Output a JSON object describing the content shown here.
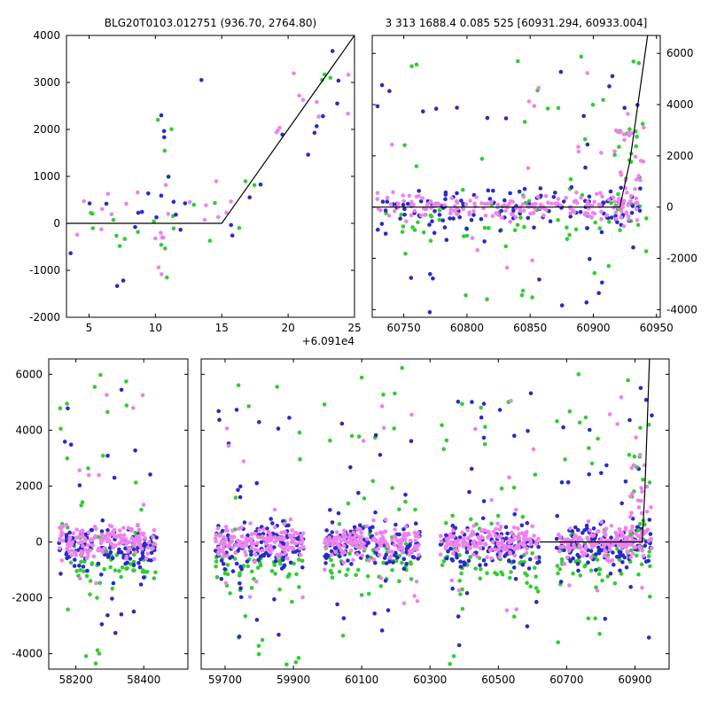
{
  "figure": {
    "background": "#ffffff",
    "text_color": "#000000",
    "colors": {
      "green": "#33cc33",
      "blue": "#2a2ac8",
      "violet": "#ee82ee",
      "line": "#000000"
    }
  },
  "chart_data": [
    {
      "id": "top_left",
      "type": "scatter",
      "title": "BLG20T0103.012751 (936.70, 2764.80)",
      "x_offset_label": "+6.091e4",
      "ylim": [
        -2000,
        4000
      ],
      "yticks": [
        -2000,
        -1000,
        0,
        1000,
        2000,
        3000,
        4000
      ],
      "ytick_side": "left",
      "panels": [
        {
          "xlim": [
            3.3,
            25
          ],
          "xticks": [
            5,
            10,
            15,
            20,
            25
          ]
        }
      ],
      "line": [
        [
          3.3,
          0
        ],
        [
          15,
          0
        ],
        [
          25,
          4000
        ]
      ],
      "clusters": [
        {
          "color": "green",
          "n": 14,
          "x": [
            3.4,
            15
          ],
          "dist": "normal",
          "mean": 130,
          "sd": 350
        },
        {
          "color": "green",
          "n": 6,
          "x": [
            9.8,
            11.4
          ],
          "dist": "uniform",
          "range": [
            -1300,
            3750
          ]
        },
        {
          "color": "green",
          "n": 6,
          "x": [
            15,
            25
          ],
          "dist": "line",
          "sd": 700
        },
        {
          "color": "blue",
          "n": 12,
          "x": [
            3.6,
            15
          ],
          "dist": "normal",
          "mean": 80,
          "sd": 420
        },
        {
          "color": "blue",
          "n": 2,
          "x": [
            6.8,
            7.6
          ],
          "dist": "uniform",
          "range": [
            -1400,
            -1100
          ]
        },
        {
          "color": "blue",
          "n": 5,
          "x": [
            9.8,
            11.3
          ],
          "dist": "uniform",
          "range": [
            -900,
            3000
          ]
        },
        {
          "color": "blue",
          "n": 1,
          "x": [
            13.3,
            13.7
          ],
          "dist": "uniform",
          "range": [
            2900,
            3100
          ]
        },
        {
          "color": "blue",
          "n": 12,
          "x": [
            15.2,
            24.6
          ],
          "dist": "line",
          "sd": 600
        },
        {
          "color": "violet",
          "n": 16,
          "x": [
            3.4,
            15
          ],
          "dist": "normal",
          "mean": 240,
          "sd": 330
        },
        {
          "color": "violet",
          "n": 5,
          "x": [
            9.9,
            11.2
          ],
          "dist": "uniform",
          "range": [
            -1300,
            2300
          ]
        },
        {
          "color": "violet",
          "n": 13,
          "x": [
            15,
            25
          ],
          "dist": "line",
          "sd": 550
        }
      ]
    },
    {
      "id": "top_right",
      "type": "scatter",
      "title": "3 313 1688.4 0.085 525 [60931.294, 60933.004]",
      "x_offset_label": "",
      "ylim": [
        -4300,
        6700
      ],
      "yticks": [
        -4000,
        -2000,
        0,
        2000,
        4000,
        6000
      ],
      "ytick_side": "right",
      "panels": [
        {
          "xlim": [
            60725,
            60953
          ],
          "xticks": [
            60750,
            60800,
            60850,
            60900,
            60950
          ]
        }
      ],
      "line": [
        [
          60725,
          0
        ],
        [
          60921,
          0
        ],
        [
          60929,
          1800
        ],
        [
          60937,
          4600
        ],
        [
          60945,
          7400
        ]
      ],
      "clusters": [
        {
          "color": "green",
          "n": 50,
          "x": [
            60730,
            60940
          ],
          "dist": "normal",
          "mean": -450,
          "sd": 550
        },
        {
          "color": "green",
          "n": 38,
          "x": [
            60730,
            60945
          ],
          "dist": "uniform",
          "range": [
            -3600,
            6300
          ]
        },
        {
          "color": "green",
          "n": 16,
          "x": [
            60916,
            60942
          ],
          "dist": "uniform",
          "range": [
            0,
            3300
          ]
        },
        {
          "color": "blue",
          "n": 110,
          "x": [
            60728,
            60938
          ],
          "dist": "normal",
          "mean": -80,
          "sd": 420
        },
        {
          "color": "blue",
          "n": 38,
          "x": [
            60728,
            60944
          ],
          "dist": "uniform",
          "range": [
            -4300,
            5800
          ]
        },
        {
          "color": "violet",
          "n": 170,
          "x": [
            60728,
            60936
          ],
          "dist": "normal",
          "mean": 0,
          "sd": 280
        },
        {
          "color": "violet",
          "n": 18,
          "x": [
            60730,
            60930
          ],
          "dist": "uniform",
          "range": [
            -2700,
            5300
          ]
        },
        {
          "color": "violet",
          "n": 24,
          "x": [
            60914,
            60940
          ],
          "dist": "uniform",
          "range": [
            0,
            3200
          ]
        }
      ]
    },
    {
      "id": "bottom",
      "type": "scatter",
      "title": "",
      "x_offset_label": "",
      "ylim": [
        -4550,
        6550
      ],
      "yticks": [
        -4000,
        -2000,
        0,
        2000,
        4000,
        6000
      ],
      "ytick_side": "left",
      "panels": [
        {
          "xlim": [
            58120,
            58530
          ],
          "xticks": [
            58200,
            58400
          ]
        },
        {
          "xlim": [
            59630,
            61000
          ],
          "xticks": [
            59700,
            59900,
            60100,
            60300,
            60500,
            60700,
            60900
          ]
        }
      ],
      "line": [
        [
          60620,
          0
        ],
        [
          60921,
          0
        ],
        [
          60929,
          1800
        ],
        [
          60937,
          4600
        ],
        [
          60945,
          7400
        ]
      ],
      "clusters": [
        {
          "color": "green",
          "n": 55,
          "x": [
            58150,
            58440
          ],
          "dist": "normal",
          "mean": -650,
          "sd": 500
        },
        {
          "color": "green",
          "n": 55,
          "x": [
            59670,
            59930
          ],
          "dist": "normal",
          "mean": -650,
          "sd": 500
        },
        {
          "color": "green",
          "n": 55,
          "x": [
            59990,
            60270
          ],
          "dist": "normal",
          "mean": -650,
          "sd": 500
        },
        {
          "color": "green",
          "n": 55,
          "x": [
            60330,
            60620
          ],
          "dist": "normal",
          "mean": -650,
          "sd": 500
        },
        {
          "color": "green",
          "n": 55,
          "x": [
            60670,
            60950
          ],
          "dist": "normal",
          "mean": -650,
          "sd": 500
        },
        {
          "color": "green",
          "n": 26,
          "x": [
            58150,
            58440
          ],
          "dist": "uniform",
          "range": [
            -4450,
            6400
          ]
        },
        {
          "color": "green",
          "n": 26,
          "x": [
            59670,
            59930
          ],
          "dist": "uniform",
          "range": [
            -4450,
            6400
          ]
        },
        {
          "color": "green",
          "n": 26,
          "x": [
            59990,
            60270
          ],
          "dist": "uniform",
          "range": [
            -4450,
            6400
          ]
        },
        {
          "color": "green",
          "n": 26,
          "x": [
            60330,
            60620
          ],
          "dist": "uniform",
          "range": [
            -4450,
            6400
          ]
        },
        {
          "color": "green",
          "n": 26,
          "x": [
            60670,
            60950
          ],
          "dist": "uniform",
          "range": [
            -4450,
            6400
          ]
        },
        {
          "color": "blue",
          "n": 115,
          "x": [
            58150,
            58440
          ],
          "dist": "normal",
          "mean": -120,
          "sd": 430
        },
        {
          "color": "blue",
          "n": 115,
          "x": [
            59670,
            59930
          ],
          "dist": "normal",
          "mean": -120,
          "sd": 430
        },
        {
          "color": "blue",
          "n": 115,
          "x": [
            59990,
            60270
          ],
          "dist": "normal",
          "mean": -120,
          "sd": 430
        },
        {
          "color": "blue",
          "n": 115,
          "x": [
            60330,
            60620
          ],
          "dist": "normal",
          "mean": -120,
          "sd": 430
        },
        {
          "color": "blue",
          "n": 115,
          "x": [
            60670,
            60950
          ],
          "dist": "normal",
          "mean": -120,
          "sd": 430
        },
        {
          "color": "blue",
          "n": 20,
          "x": [
            58150,
            58440
          ],
          "dist": "uniform",
          "range": [
            -3800,
            5900
          ]
        },
        {
          "color": "blue",
          "n": 20,
          "x": [
            59670,
            59930
          ],
          "dist": "uniform",
          "range": [
            -3800,
            5900
          ]
        },
        {
          "color": "blue",
          "n": 20,
          "x": [
            59990,
            60270
          ],
          "dist": "uniform",
          "range": [
            -3800,
            5900
          ]
        },
        {
          "color": "blue",
          "n": 20,
          "x": [
            60330,
            60620
          ],
          "dist": "uniform",
          "range": [
            -3800,
            5900
          ]
        },
        {
          "color": "blue",
          "n": 20,
          "x": [
            60670,
            60950
          ],
          "dist": "uniform",
          "range": [
            -3800,
            5900
          ]
        },
        {
          "color": "violet",
          "n": 150,
          "x": [
            58150,
            58440
          ],
          "dist": "normal",
          "mean": 0,
          "sd": 270
        },
        {
          "color": "violet",
          "n": 150,
          "x": [
            59670,
            59930
          ],
          "dist": "normal",
          "mean": 0,
          "sd": 270
        },
        {
          "color": "violet",
          "n": 150,
          "x": [
            59990,
            60270
          ],
          "dist": "normal",
          "mean": 0,
          "sd": 270
        },
        {
          "color": "violet",
          "n": 150,
          "x": [
            60330,
            60620
          ],
          "dist": "normal",
          "mean": 0,
          "sd": 270
        },
        {
          "color": "violet",
          "n": 150,
          "x": [
            60670,
            60950
          ],
          "dist": "normal",
          "mean": 0,
          "sd": 270
        },
        {
          "color": "violet",
          "n": 10,
          "x": [
            58150,
            58440
          ],
          "dist": "uniform",
          "range": [
            -2500,
            5400
          ]
        },
        {
          "color": "violet",
          "n": 10,
          "x": [
            59670,
            59930
          ],
          "dist": "uniform",
          "range": [
            -2500,
            5400
          ]
        },
        {
          "color": "violet",
          "n": 10,
          "x": [
            59990,
            60270
          ],
          "dist": "uniform",
          "range": [
            -2500,
            5400
          ]
        },
        {
          "color": "violet",
          "n": 10,
          "x": [
            60330,
            60620
          ],
          "dist": "uniform",
          "range": [
            -2500,
            5400
          ]
        },
        {
          "color": "violet",
          "n": 10,
          "x": [
            60670,
            60950
          ],
          "dist": "uniform",
          "range": [
            -2500,
            5400
          ]
        },
        {
          "color": "green",
          "n": 10,
          "x": [
            60885,
            60945
          ],
          "dist": "uniform",
          "range": [
            0,
            3100
          ]
        },
        {
          "color": "violet",
          "n": 22,
          "x": [
            60885,
            60948
          ],
          "dist": "uniform",
          "range": [
            0,
            3200
          ]
        }
      ]
    }
  ]
}
